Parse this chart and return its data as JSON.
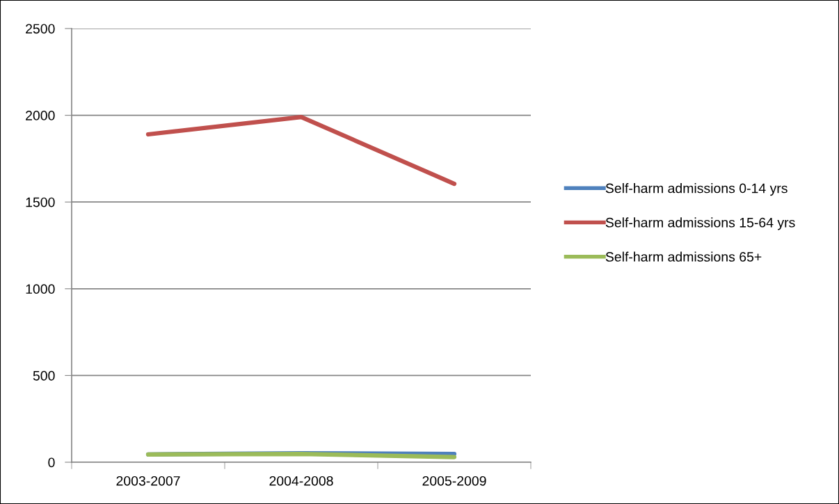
{
  "chart_data": {
    "type": "line",
    "categories": [
      "2003-2007",
      "2004-2008",
      "2005-2009"
    ],
    "series": [
      {
        "name": "Self-harm admissions 0-14 yrs",
        "color": "#4f81bd",
        "values": [
          45,
          52,
          48
        ]
      },
      {
        "name": "Self-harm admissions 15-64 yrs",
        "color": "#c0504d",
        "values": [
          1890,
          1990,
          1605
        ]
      },
      {
        "name": "Self-harm admissions 65+",
        "color": "#9bbb59",
        "values": [
          45,
          48,
          30
        ]
      }
    ],
    "ylim": [
      0,
      2500
    ],
    "yticks": [
      0,
      500,
      1000,
      1500,
      2000,
      2500
    ],
    "grid": "y",
    "legend": "right",
    "marker": "none"
  }
}
